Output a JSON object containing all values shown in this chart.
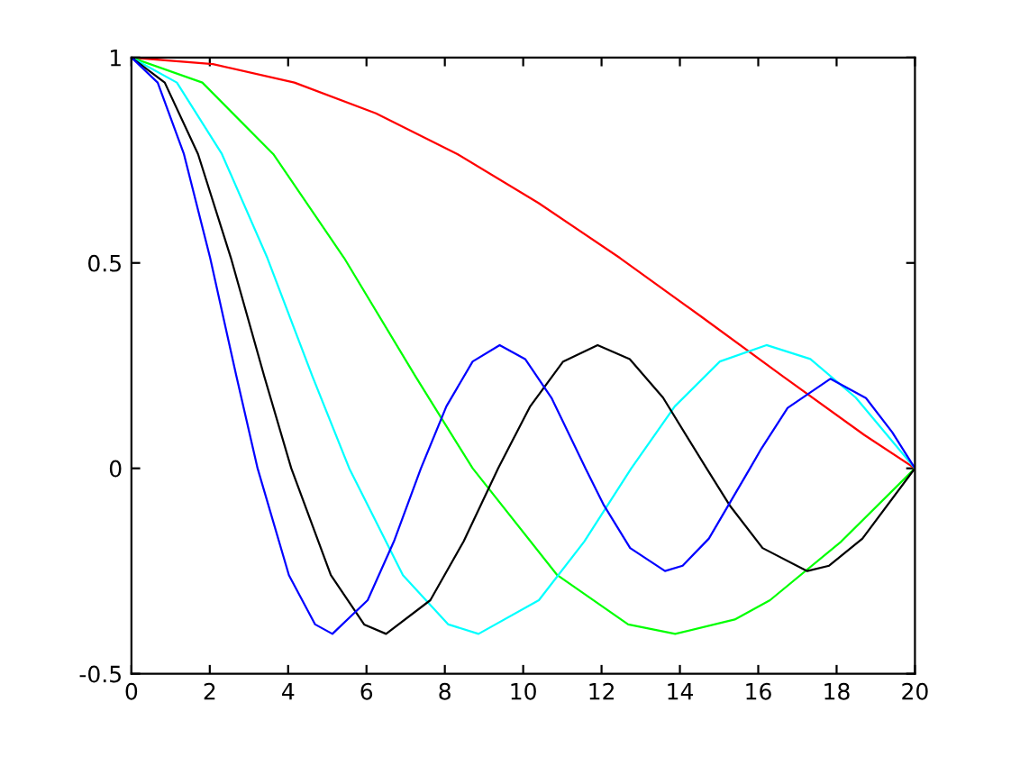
{
  "chart_data": {
    "type": "line",
    "xlim": [
      0,
      20
    ],
    "xticks": [
      0,
      2,
      4,
      6,
      8,
      10,
      12,
      14,
      16,
      18,
      20
    ],
    "ylim": [
      -0.5,
      1
    ],
    "yticks": [
      -0.5,
      0,
      0.5,
      1
    ],
    "grid": false,
    "marker": "none",
    "line_style": "solid",
    "series": [
      {
        "color": "#ff0000",
        "x": [
          0,
          2.08,
          4.16,
          6.24,
          8.32,
          10.39,
          12.47,
          14.55,
          16.63,
          18.71,
          20
        ],
        "values": [
          1,
          0.984,
          0.939,
          0.864,
          0.765,
          0.646,
          0.512,
          0.369,
          0.224,
          0.081,
          0
        ]
      },
      {
        "color": "#00ff00",
        "x": [
          0,
          1.81,
          3.62,
          5.43,
          7.25,
          8.71,
          10.87,
          12.68,
          13.88,
          15.4,
          16.3,
          18.12,
          20
        ],
        "values": [
          1,
          0.939,
          0.765,
          0.512,
          0.224,
          0,
          -0.26,
          -0.38,
          -0.403,
          -0.368,
          -0.321,
          -0.178,
          0
        ]
      },
      {
        "color": "#00ffff",
        "x": [
          0,
          1.16,
          2.31,
          3.47,
          4.62,
          5.56,
          6.93,
          8.09,
          8.86,
          10.4,
          11.56,
          12.76,
          13.87,
          15.02,
          16.21,
          17.33,
          18.49,
          20
        ],
        "values": [
          1,
          0.939,
          0.765,
          0.512,
          0.224,
          0,
          -0.26,
          -0.38,
          -0.403,
          -0.321,
          -0.178,
          0,
          0.151,
          0.26,
          0.3,
          0.266,
          0.172,
          0
        ]
      },
      {
        "color": "#000000",
        "x": [
          0,
          0.85,
          1.7,
          2.54,
          3.39,
          4.08,
          5.09,
          5.94,
          6.5,
          7.63,
          8.48,
          9.36,
          10.18,
          11.02,
          11.9,
          12.72,
          13.57,
          14.68,
          15.27,
          16.11,
          17.25,
          17.81,
          18.66,
          20
        ],
        "values": [
          1,
          0.939,
          0.765,
          0.512,
          0.224,
          0,
          -0.26,
          -0.38,
          -0.403,
          -0.321,
          -0.178,
          0,
          0.151,
          0.26,
          0.3,
          0.266,
          0.172,
          0,
          -0.09,
          -0.194,
          -0.25,
          -0.237,
          -0.171,
          0
        ]
      },
      {
        "color": "#0000ff",
        "x": [
          0,
          0.67,
          1.34,
          2.01,
          2.68,
          3.22,
          4.02,
          4.69,
          5.13,
          6.03,
          6.7,
          7.39,
          8.04,
          8.71,
          9.4,
          10.05,
          10.72,
          11.59,
          12.06,
          12.73,
          13.62,
          14.07,
          14.74,
          15.79,
          16.08,
          16.75,
          17.84,
          18.75,
          19.42,
          20
        ],
        "values": [
          1,
          0.939,
          0.765,
          0.512,
          0.224,
          0,
          -0.26,
          -0.38,
          -0.403,
          -0.321,
          -0.178,
          0,
          0.151,
          0.26,
          0.3,
          0.266,
          0.172,
          0,
          -0.09,
          -0.194,
          -0.25,
          -0.237,
          -0.171,
          0,
          0.048,
          0.147,
          0.218,
          0.171,
          0.088,
          0
        ]
      }
    ]
  }
}
